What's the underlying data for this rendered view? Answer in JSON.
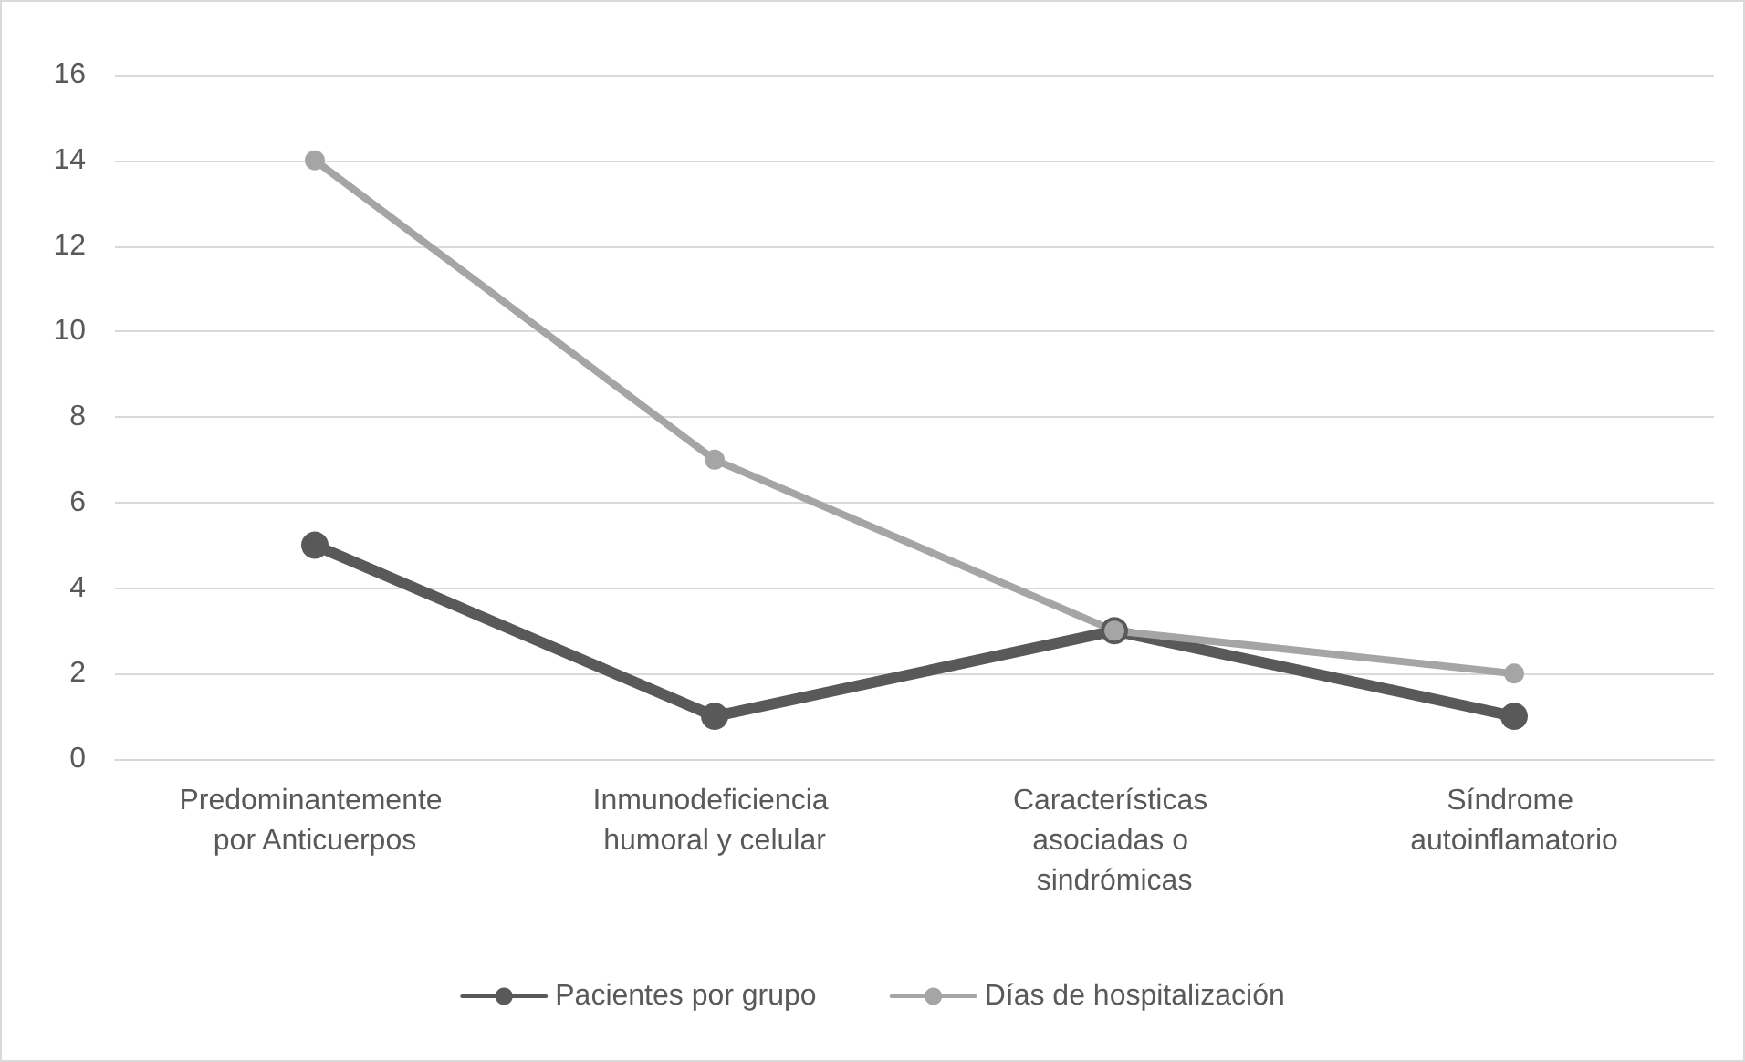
{
  "chart_data": {
    "type": "line",
    "categories": [
      "Predominantemente por Anticuerpos",
      "Inmunodeficiencia humoral y celular",
      "Características asociadas o sindrómicas",
      "Síndrome autoinflamatorio"
    ],
    "series": [
      {
        "name": "Pacientes por grupo",
        "color": "#595959",
        "values": [
          5,
          1,
          3,
          1
        ]
      },
      {
        "name": "Días de hospitalización",
        "color": "#a5a5a5",
        "values": [
          14,
          7,
          3,
          2
        ]
      }
    ],
    "ylim": [
      0,
      16
    ],
    "yticks": [
      0,
      2,
      4,
      6,
      8,
      10,
      12,
      14,
      16
    ],
    "grid": "y",
    "legend": "bottom",
    "marker": "circle",
    "line_style": "solid"
  }
}
